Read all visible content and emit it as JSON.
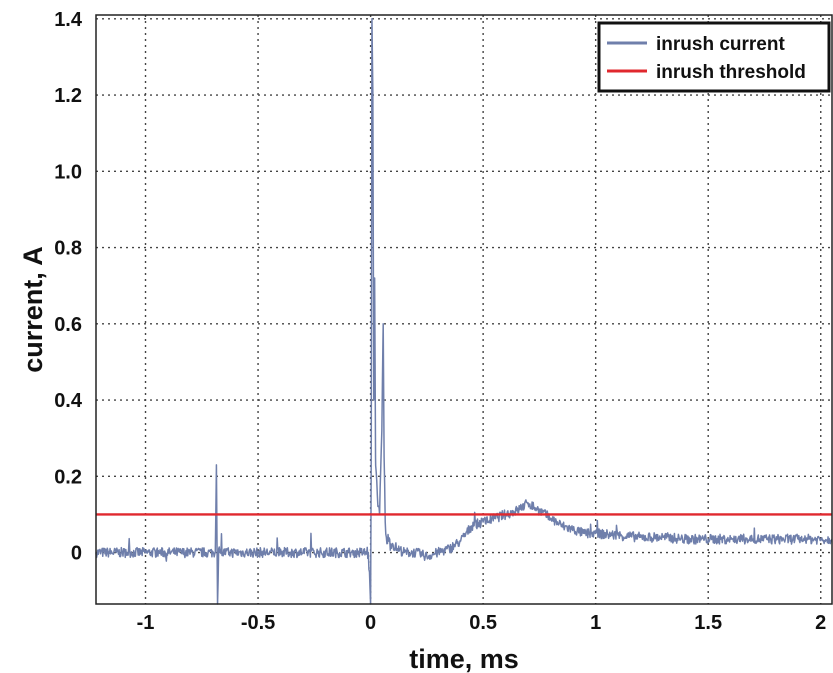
{
  "chart_data": {
    "type": "line",
    "xlabel": "time, ms",
    "ylabel": "current, A",
    "xlim": [
      -1.22,
      2.05
    ],
    "ylim": [
      -0.135,
      1.41
    ],
    "x_ticks": [
      -1,
      -0.5,
      0,
      0.5,
      1,
      1.5,
      2
    ],
    "x_tick_labels": [
      "-1",
      "-0.5",
      "0",
      "0.5",
      "1",
      "1.5",
      "2"
    ],
    "y_ticks": [
      0,
      0.2,
      0.4,
      0.6,
      0.8,
      1.0,
      1.2,
      1.4
    ],
    "y_tick_labels": [
      "0",
      "0.2",
      "0.4",
      "0.6",
      "0.8",
      "1.0",
      "1.2",
      "1.4"
    ],
    "grid": true,
    "legend_position": "top-right",
    "series": [
      {
        "name": "inrush current",
        "color": "#6f7fab",
        "style": "noisy",
        "x": [
          -1.22,
          -1.0,
          -0.8,
          -0.69,
          -0.685,
          -0.68,
          -0.675,
          -0.67,
          -0.5,
          -0.3,
          -0.1,
          -0.01,
          0.0,
          0.003,
          0.006,
          0.01,
          0.014,
          0.018,
          0.022,
          0.03,
          0.04,
          0.05,
          0.056,
          0.06,
          0.065,
          0.07,
          0.08,
          0.1,
          0.12,
          0.15,
          0.2,
          0.25,
          0.3,
          0.35,
          0.4,
          0.45,
          0.5,
          0.55,
          0.6,
          0.65,
          0.7,
          0.75,
          0.8,
          0.85,
          0.9,
          0.95,
          1.0,
          1.1,
          1.2,
          1.3,
          1.4,
          1.5,
          1.6,
          1.7,
          1.8,
          1.9,
          2.0,
          2.05
        ],
        "values": [
          0.0,
          0.0,
          0.0,
          0.0,
          0.23,
          -0.135,
          0.01,
          0.0,
          0.0,
          0.0,
          0.0,
          0.0,
          -0.135,
          0.3,
          1.4,
          1.21,
          0.4,
          0.72,
          0.25,
          0.15,
          0.1,
          0.32,
          0.6,
          0.25,
          0.08,
          0.04,
          0.03,
          0.02,
          0.01,
          0.0,
          0.0,
          -0.01,
          0.0,
          0.01,
          0.03,
          0.07,
          0.08,
          0.09,
          0.1,
          0.11,
          0.13,
          0.11,
          0.09,
          0.07,
          0.06,
          0.05,
          0.05,
          0.045,
          0.04,
          0.04,
          0.035,
          0.035,
          0.035,
          0.035,
          0.035,
          0.035,
          0.035,
          0.035
        ]
      },
      {
        "name": "inrush threshold",
        "color": "#e0282e",
        "x": [
          -1.22,
          2.05
        ],
        "values": [
          0.1,
          0.1
        ]
      }
    ]
  }
}
